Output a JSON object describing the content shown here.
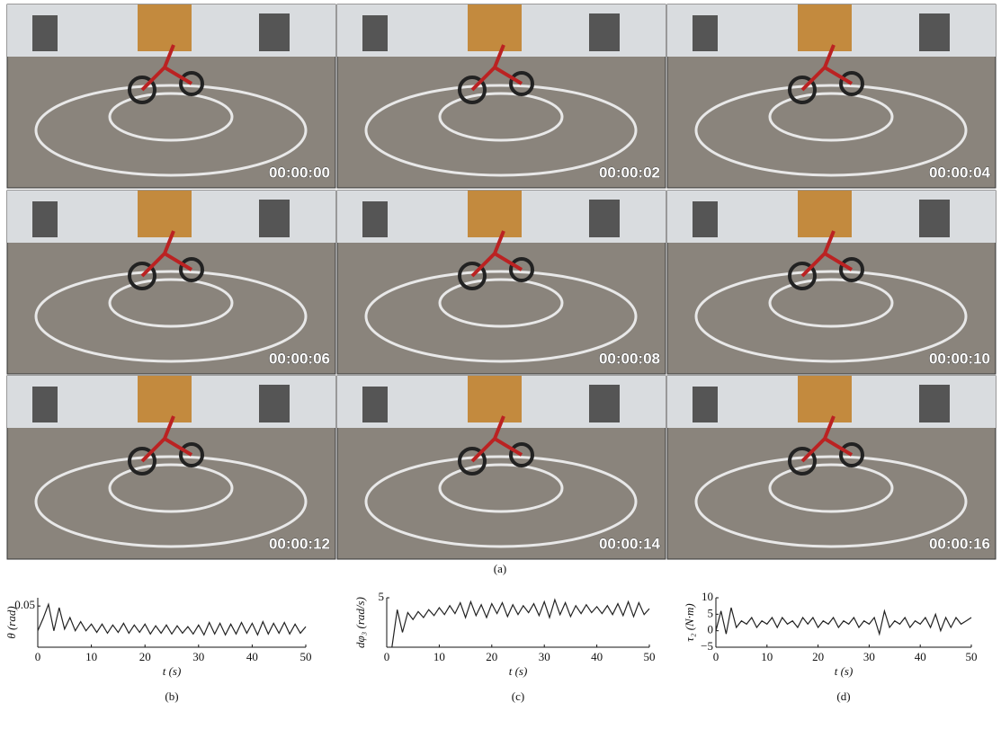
{
  "figure": {
    "frames": [
      "00:00:00",
      "00:00:02",
      "00:00:04",
      "00:00:06",
      "00:00:08",
      "00:00:10",
      "00:00:12",
      "00:00:14",
      "00:00:16"
    ],
    "label": "(a)"
  },
  "chart_data": [
    {
      "type": "line",
      "label": "(b)",
      "xlabel": "t (s)",
      "ylabel": "θ (rad)",
      "xlim": [
        0,
        50
      ],
      "xticks": [
        0,
        10,
        20,
        30,
        40,
        50
      ],
      "ylim": [
        0,
        0.06
      ],
      "yticks": [
        0.05
      ],
      "color": "#222222",
      "x": [
        0,
        1,
        2,
        3,
        4,
        5,
        6,
        7,
        8,
        9,
        10,
        11,
        12,
        13,
        14,
        15,
        16,
        17,
        18,
        19,
        20,
        21,
        22,
        23,
        24,
        25,
        26,
        27,
        28,
        29,
        30,
        31,
        32,
        33,
        34,
        35,
        36,
        37,
        38,
        39,
        40,
        41,
        42,
        43,
        44,
        45,
        46,
        47,
        48,
        49,
        50
      ],
      "values": [
        0.02,
        0.035,
        0.052,
        0.02,
        0.048,
        0.022,
        0.036,
        0.02,
        0.031,
        0.02,
        0.028,
        0.018,
        0.028,
        0.017,
        0.027,
        0.018,
        0.029,
        0.017,
        0.027,
        0.018,
        0.028,
        0.016,
        0.026,
        0.017,
        0.027,
        0.016,
        0.026,
        0.017,
        0.025,
        0.016,
        0.027,
        0.015,
        0.03,
        0.016,
        0.029,
        0.015,
        0.028,
        0.016,
        0.03,
        0.017,
        0.029,
        0.015,
        0.031,
        0.016,
        0.029,
        0.017,
        0.03,
        0.016,
        0.028,
        0.017,
        0.025
      ]
    },
    {
      "type": "line",
      "label": "(c)",
      "xlabel": "t (s)",
      "ylabel": "dφ₃ (rad/s)",
      "xlim": [
        0,
        50
      ],
      "xticks": [
        0,
        10,
        20,
        30,
        40,
        50
      ],
      "ylim": [
        0,
        5
      ],
      "yticks": [
        5
      ],
      "color": "#222222",
      "x": [
        1,
        2,
        3,
        4,
        5,
        6,
        7,
        8,
        9,
        10,
        11,
        12,
        13,
        14,
        15,
        16,
        17,
        18,
        19,
        20,
        21,
        22,
        23,
        24,
        25,
        26,
        27,
        28,
        29,
        30,
        31,
        32,
        33,
        34,
        35,
        36,
        37,
        38,
        39,
        40,
        41,
        42,
        43,
        44,
        45,
        46,
        47,
        48,
        49,
        50
      ],
      "values": [
        0,
        3.8,
        1.5,
        3.5,
        2.8,
        3.6,
        3,
        3.8,
        3.2,
        4,
        3.3,
        4.2,
        3.4,
        4.5,
        3,
        4.6,
        3.2,
        4.3,
        3,
        4.4,
        3.4,
        4.5,
        3.1,
        4.3,
        3.3,
        4.2,
        3.5,
        4.4,
        3.2,
        4.6,
        3,
        4.8,
        3.3,
        4.5,
        3.1,
        4.2,
        3.4,
        4.3,
        3.5,
        4.1,
        3.4,
        4.2,
        3.3,
        4.4,
        3.2,
        4.6,
        3.1,
        4.5,
        3.3,
        3.9
      ]
    },
    {
      "type": "line",
      "label": "(d)",
      "xlabel": "t (s)",
      "ylabel": "τ₂ (N·m)",
      "xlim": [
        0,
        50
      ],
      "xticks": [
        0,
        10,
        20,
        30,
        40,
        50
      ],
      "ylim": [
        -5,
        10
      ],
      "yticks": [
        {
          "value": -5,
          "label": "−5"
        },
        0,
        5,
        10
      ],
      "color": "#222222",
      "x": [
        0,
        1,
        2,
        3,
        4,
        5,
        6,
        7,
        8,
        9,
        10,
        11,
        12,
        13,
        14,
        15,
        16,
        17,
        18,
        19,
        20,
        21,
        22,
        23,
        24,
        25,
        26,
        27,
        28,
        29,
        30,
        31,
        32,
        33,
        34,
        35,
        36,
        37,
        38,
        39,
        40,
        41,
        42,
        43,
        44,
        45,
        46,
        47,
        48,
        49,
        50
      ],
      "values": [
        0,
        6,
        -1,
        7,
        1,
        3,
        2,
        4,
        1,
        3,
        2,
        4,
        1,
        4,
        2,
        3,
        1,
        4,
        2,
        4,
        1,
        3,
        2,
        4,
        1,
        3,
        2,
        4,
        1,
        3,
        2,
        4,
        -1,
        6,
        1,
        3,
        2,
        4,
        1,
        3,
        2,
        4,
        1,
        5,
        0,
        4,
        1,
        4,
        2,
        3,
        4
      ]
    }
  ]
}
